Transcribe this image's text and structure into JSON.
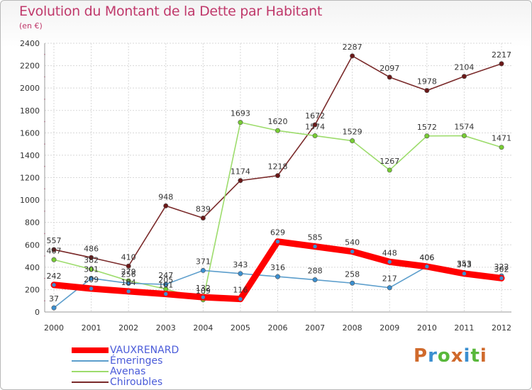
{
  "title": "Evolution du Montant de la Dette par Habitant",
  "subtitle": "(en €)",
  "logo": {
    "text": "Proxiti",
    "letter_colors": [
      "#d06a2c",
      "#3b8fd0",
      "#59b83b",
      "#d06a2c",
      "#3b8fd0",
      "#59b83b",
      "#d06a2c"
    ]
  },
  "chart_data": {
    "type": "line",
    "x": [
      "2000",
      "2001",
      "2002",
      "2003",
      "2004",
      "2005",
      "2006",
      "2007",
      "2008",
      "2009",
      "2010",
      "2011",
      "2012"
    ],
    "ylim": [
      0,
      2400
    ],
    "yticks": [
      0,
      200,
      400,
      600,
      800,
      1000,
      1200,
      1400,
      1600,
      1800,
      2000,
      2200,
      2400
    ],
    "grid": true,
    "legend_position": "bottom-left",
    "series": [
      {
        "name": "VAUXRENARD",
        "color": "#ff0000",
        "marker": "#3b8fd0",
        "values": [
          242,
          209,
          184,
          161,
          132,
          116,
          629,
          585,
          540,
          448,
          406,
          343,
          302
        ]
      },
      {
        "name": "Émeringes",
        "color": "#5c9ecc",
        "marker": "#3b8fd0",
        "values": [
          37,
          301,
          256,
          247,
          371,
          343,
          316,
          288,
          258,
          217,
          406,
          353,
          322
        ]
      },
      {
        "name": "Avenas",
        "color": "#9ddc6c",
        "marker": "#77cc33",
        "values": [
          467,
          382,
          279,
          205,
          109,
          1693,
          1620,
          1574,
          1529,
          1267,
          1572,
          1574,
          1471
        ]
      },
      {
        "name": "Chiroubles",
        "color": "#7a2a2a",
        "marker": "#6b1818",
        "values": [
          557,
          486,
          410,
          948,
          839,
          1174,
          1218,
          1672,
          2287,
          2097,
          1978,
          2104,
          2217
        ]
      }
    ]
  }
}
